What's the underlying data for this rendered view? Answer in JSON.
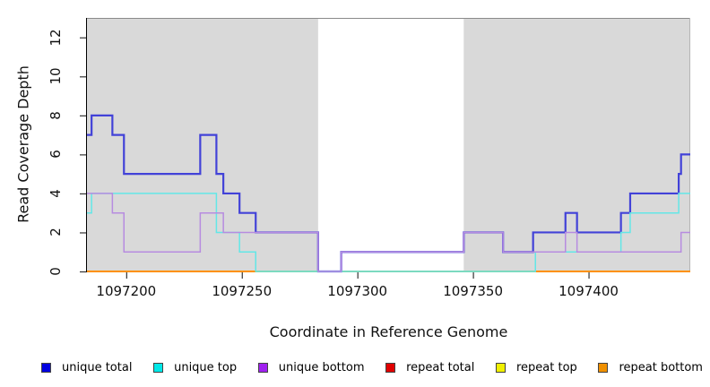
{
  "figure": {
    "xlabel": "Coordinate in Reference Genome",
    "ylabel": "Read Coverage Depth"
  },
  "chart_data": {
    "type": "line",
    "subtype": "step",
    "title": "",
    "xlabel": "Coordinate in Reference Genome",
    "ylabel": "Read Coverage Depth",
    "xlim": [
      1097183,
      1097444
    ],
    "ylim": [
      0,
      13
    ],
    "x_ticks": [
      1097200,
      1097250,
      1097300,
      1097350,
      1097400
    ],
    "y_ticks": [
      0,
      2,
      4,
      6,
      8,
      10,
      12
    ],
    "grid": false,
    "plot_bg": "#d9d9d9",
    "highlight_band": {
      "from": 1097283,
      "to": 1097346,
      "color": "#ffffff"
    },
    "legend_position": "bottom",
    "series": [
      {
        "name": "unique total",
        "color": "#4242d8",
        "width": 2.2,
        "x_end": 1097444,
        "steps": [
          [
            1097183,
            7
          ],
          [
            1097185,
            8
          ],
          [
            1097194,
            7
          ],
          [
            1097199,
            5
          ],
          [
            1097232,
            7
          ],
          [
            1097239,
            5
          ],
          [
            1097242,
            4
          ],
          [
            1097249,
            3
          ],
          [
            1097256,
            2
          ],
          [
            1097283,
            0
          ],
          [
            1097293,
            1
          ],
          [
            1097346,
            2
          ],
          [
            1097363,
            1
          ],
          [
            1097376,
            2
          ],
          [
            1097390,
            3
          ],
          [
            1097395,
            2
          ],
          [
            1097414,
            3
          ],
          [
            1097418,
            4
          ],
          [
            1097439,
            5
          ],
          [
            1097440,
            6
          ]
        ]
      },
      {
        "name": "unique top",
        "color": "#63e7e7",
        "width": 1.5,
        "x_end": 1097444,
        "steps": [
          [
            1097183,
            3
          ],
          [
            1097185,
            4
          ],
          [
            1097239,
            2
          ],
          [
            1097249,
            1
          ],
          [
            1097256,
            0
          ],
          [
            1097377,
            1
          ],
          [
            1097414,
            2
          ],
          [
            1097418,
            3
          ],
          [
            1097439,
            4
          ]
        ]
      },
      {
        "name": "unique bottom",
        "color": "#b78ce0",
        "width": 1.5,
        "x_end": 1097444,
        "steps": [
          [
            1097183,
            4
          ],
          [
            1097194,
            3
          ],
          [
            1097199,
            1
          ],
          [
            1097232,
            3
          ],
          [
            1097242,
            2
          ],
          [
            1097283,
            0
          ],
          [
            1097293,
            1
          ],
          [
            1097346,
            2
          ],
          [
            1097363,
            1
          ],
          [
            1097390,
            2
          ],
          [
            1097395,
            1
          ],
          [
            1097440,
            2
          ]
        ]
      },
      {
        "name": "repeat total",
        "color": "#dd2222",
        "width": 1.5,
        "x_end": 1097444,
        "steps": [
          [
            1097183,
            0
          ]
        ]
      },
      {
        "name": "repeat top",
        "color": "#f0f000",
        "width": 1.5,
        "x_end": 1097444,
        "steps": [
          [
            1097183,
            0
          ]
        ]
      },
      {
        "name": "repeat bottom",
        "color": "#ff9100",
        "width": 2,
        "x_end": 1097444,
        "steps": [
          [
            1097183,
            0
          ]
        ]
      }
    ],
    "baseline_blend_segment": {
      "from": 1097256,
      "to": 1097377,
      "value": 0,
      "color": "#8fd08f"
    }
  },
  "legend": {
    "items": [
      {
        "label": "unique total",
        "color": "#0000e0"
      },
      {
        "label": "unique top",
        "color": "#00e8e8"
      },
      {
        "label": "unique bottom",
        "color": "#a020f0"
      },
      {
        "label": "repeat total",
        "color": "#e00000"
      },
      {
        "label": "repeat top",
        "color": "#f0f000"
      },
      {
        "label": "repeat bottom",
        "color": "#f09000"
      }
    ]
  }
}
